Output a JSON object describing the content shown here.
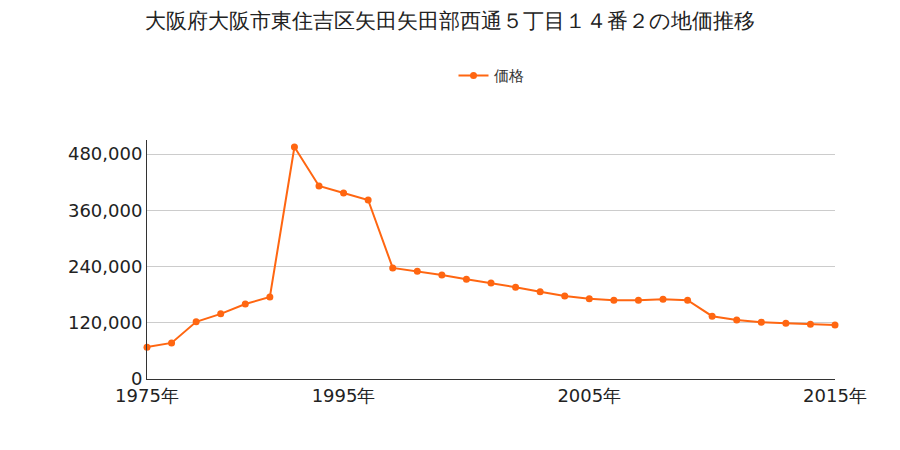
{
  "chart_data": {
    "type": "line",
    "title": "大阪府大阪市東住吉区矢田矢田部西通５丁目１４番２の地価推移",
    "categories": [
      "1975年",
      null,
      null,
      null,
      null,
      null,
      null,
      null,
      "1995年",
      null,
      null,
      null,
      null,
      null,
      null,
      null,
      null,
      null,
      "2005年",
      null,
      null,
      null,
      null,
      null,
      null,
      null,
      null,
      null,
      "2015年"
    ],
    "series": [
      {
        "name": "価格",
        "color": "#ff6611",
        "marker": "circle",
        "values": [
          68000,
          77000,
          122000,
          139000,
          160000,
          175000,
          495000,
          412000,
          397000,
          382000,
          237000,
          230000,
          222000,
          213000,
          205000,
          196000,
          186000,
          177000,
          171000,
          168000,
          168000,
          170000,
          168000,
          134000,
          126000,
          121000,
          119000,
          117000,
          115000
        ]
      }
    ],
    "ylim": [
      0,
      510000
    ],
    "yticks": [
      0,
      {
        "value": 120000,
        "label": "120,000"
      },
      {
        "value": 240000,
        "label": "240,000"
      },
      {
        "value": 360000,
        "label": "360,000"
      },
      {
        "value": 480000,
        "label": "480,000"
      }
    ],
    "grid": true,
    "legend": "top"
  }
}
